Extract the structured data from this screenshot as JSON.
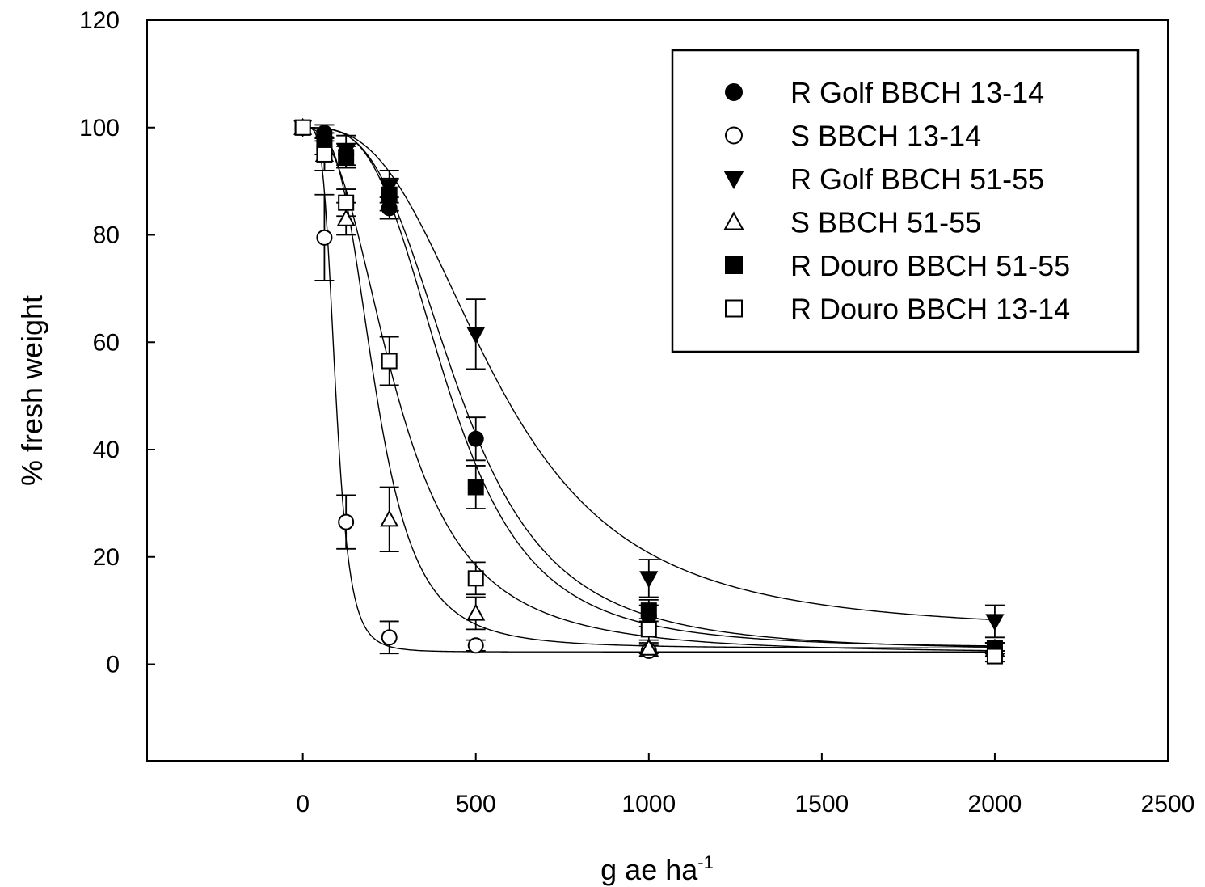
{
  "chart_data": {
    "type": "scatter",
    "xlabel": "g ae ha",
    "xlabel_superscript": "-1",
    "ylabel": "% fresh weight",
    "xlim": [
      -450,
      2500
    ],
    "ylim": [
      -18,
      120
    ],
    "x_ticks": [
      0,
      500,
      1000,
      1500,
      2000,
      2500
    ],
    "y_ticks": [
      0,
      20,
      40,
      60,
      80,
      100,
      120
    ],
    "x_tick_labels": [
      "0",
      "500",
      "1000",
      "1500",
      "2000",
      "2500"
    ],
    "y_tick_labels": [
      "0",
      "20",
      "40",
      "60",
      "80",
      "100",
      "120"
    ],
    "grid": false,
    "legend_position": "top-right",
    "fit_curves": true,
    "series": [
      {
        "name": "R Golf BBCH 13-14",
        "marker": "circle-filled",
        "x": [
          0,
          62.5,
          125,
          250,
          500,
          1000,
          2000
        ],
        "y": [
          100,
          99,
          95,
          85,
          42,
          9,
          3
        ],
        "err": [
          0,
          1.5,
          2,
          2,
          4,
          2,
          1
        ],
        "fit": {
          "bottom": 2.5,
          "top": 100,
          "ec50": 450,
          "slope": 3.3
        }
      },
      {
        "name": "S BBCH 13-14",
        "marker": "circle-open",
        "x": [
          0,
          62.5,
          125,
          250,
          500,
          1000,
          2000
        ],
        "y": [
          100,
          79.5,
          26.5,
          5,
          3.5,
          2.5,
          2
        ],
        "err": [
          0,
          8,
          5,
          3,
          1,
          1,
          0.5
        ],
        "fit": {
          "bottom": 2.3,
          "top": 100,
          "ec50": 95,
          "slope": 4.7
        }
      },
      {
        "name": "R Golf BBCH 51-55",
        "marker": "triangle-down-filled",
        "x": [
          0,
          62.5,
          125,
          250,
          500,
          1000,
          2000
        ],
        "y": [
          100,
          97,
          95.5,
          89,
          61.5,
          16,
          8
        ],
        "err": [
          0,
          2,
          3,
          3,
          6.5,
          3.5,
          3
        ],
        "fit": {
          "bottom": 6,
          "top": 100,
          "ec50": 560,
          "slope": 2.9
        }
      },
      {
        "name": "S BBCH 51-55",
        "marker": "triangle-up-open",
        "x": [
          0,
          62.5,
          125,
          250,
          500,
          1000,
          2000
        ],
        "y": [
          100,
          95,
          83,
          27,
          9.5,
          3,
          3
        ],
        "err": [
          0,
          3,
          3,
          6,
          3,
          1,
          1
        ],
        "fit": {
          "bottom": 3,
          "top": 100,
          "ec50": 210,
          "slope": 3.5
        }
      },
      {
        "name": "R Douro BBCH 51-55",
        "marker": "square-filled",
        "x": [
          0,
          62.5,
          125,
          250,
          500,
          1000,
          2000
        ],
        "y": [
          100,
          97,
          94.5,
          87.5,
          33,
          10,
          3
        ],
        "err": [
          0,
          2,
          2,
          3,
          4,
          2,
          1
        ],
        "fit": {
          "bottom": 3,
          "top": 100,
          "ec50": 420,
          "slope": 3.5
        }
      },
      {
        "name": "R Douro BBCH 13-14",
        "marker": "square-open",
        "x": [
          0,
          62.5,
          125,
          250,
          500,
          1000,
          2000
        ],
        "y": [
          100,
          95,
          86,
          56.5,
          16,
          6.5,
          1.5
        ],
        "err": [
          0,
          3,
          2.5,
          4.5,
          3,
          2,
          1
        ],
        "fit": {
          "bottom": 2,
          "top": 100,
          "ec50": 270,
          "slope": 2.6
        }
      }
    ]
  }
}
